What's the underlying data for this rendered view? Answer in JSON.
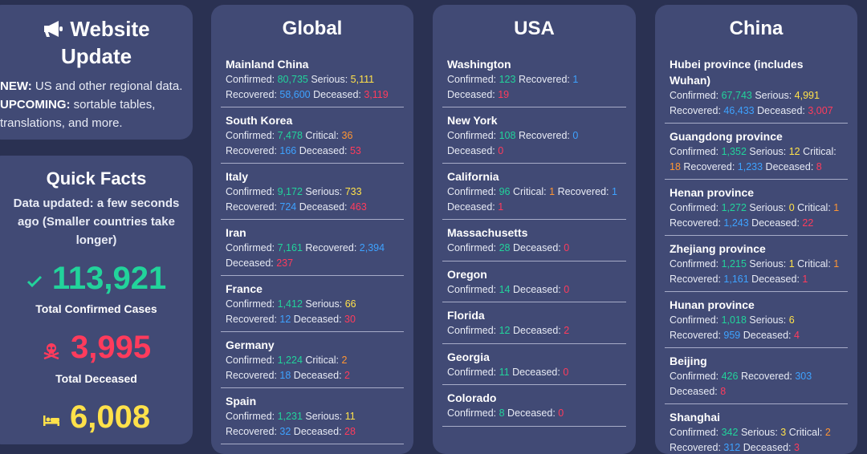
{
  "update": {
    "title_line1": "Website",
    "title_line2": "Update",
    "new_label": "NEW:",
    "new_text": " US and other regional data.",
    "upcoming_label": "UPCOMING:",
    "upcoming_text": " sortable tables, translations, and more."
  },
  "facts": {
    "title": "Quick Facts",
    "updated": "Data updated: a few seconds ago (Smaller countries take longer)",
    "confirmed": "113,921",
    "confirmed_label": "Total Confirmed Cases",
    "deceased": "3,995",
    "deceased_label": "Total Deceased",
    "recovered": "6,008"
  },
  "labels": {
    "confirmed": "Confirmed: ",
    "serious": " Serious: ",
    "critical": " Critical: ",
    "recovered": " Recovered: ",
    "deceased": " Deceased: "
  },
  "global": {
    "title": "Global",
    "items": [
      {
        "name": "Mainland China",
        "stats": [
          [
            "confirmed",
            "80,735"
          ],
          [
            "serious",
            "5,111"
          ],
          [
            "recovered",
            "58,600"
          ],
          [
            "deceased",
            "3,119"
          ]
        ]
      },
      {
        "name": "South Korea",
        "stats": [
          [
            "confirmed",
            "7,478"
          ],
          [
            "critical",
            "36"
          ],
          [
            "recovered",
            "166"
          ],
          [
            "deceased",
            "53"
          ]
        ]
      },
      {
        "name": "Italy",
        "stats": [
          [
            "confirmed",
            "9,172"
          ],
          [
            "serious",
            "733"
          ],
          [
            "recovered",
            "724"
          ],
          [
            "deceased",
            "463"
          ]
        ]
      },
      {
        "name": "Iran",
        "stats": [
          [
            "confirmed",
            "7,161"
          ],
          [
            "recovered",
            "2,394"
          ],
          [
            "deceased",
            "237"
          ]
        ]
      },
      {
        "name": "France",
        "stats": [
          [
            "confirmed",
            "1,412"
          ],
          [
            "serious",
            "66"
          ],
          [
            "recovered",
            "12"
          ],
          [
            "deceased",
            "30"
          ]
        ]
      },
      {
        "name": "Germany",
        "stats": [
          [
            "confirmed",
            "1,224"
          ],
          [
            "critical",
            "2"
          ],
          [
            "recovered",
            "18"
          ],
          [
            "deceased",
            "2"
          ]
        ]
      },
      {
        "name": "Spain",
        "stats": [
          [
            "confirmed",
            "1,231"
          ],
          [
            "serious",
            "11"
          ],
          [
            "recovered",
            "32"
          ],
          [
            "deceased",
            "28"
          ]
        ]
      }
    ]
  },
  "usa": {
    "title": "USA",
    "items": [
      {
        "name": "Washington",
        "stats": [
          [
            "confirmed",
            "123"
          ],
          [
            "recovered",
            "1"
          ],
          [
            "deceased",
            "19"
          ]
        ]
      },
      {
        "name": "New York",
        "stats": [
          [
            "confirmed",
            "108"
          ],
          [
            "recovered",
            "0"
          ],
          [
            "deceased",
            "0"
          ]
        ]
      },
      {
        "name": "California",
        "stats": [
          [
            "confirmed",
            "96"
          ],
          [
            "critical",
            "1"
          ],
          [
            "recovered",
            "1"
          ],
          [
            "deceased",
            "1"
          ]
        ]
      },
      {
        "name": "Massachusetts",
        "stats": [
          [
            "confirmed",
            "28"
          ],
          [
            "deceased",
            "0"
          ]
        ]
      },
      {
        "name": "Oregon",
        "stats": [
          [
            "confirmed",
            "14"
          ],
          [
            "deceased",
            "0"
          ]
        ]
      },
      {
        "name": "Florida",
        "stats": [
          [
            "confirmed",
            "12"
          ],
          [
            "deceased",
            "2"
          ]
        ]
      },
      {
        "name": "Georgia",
        "stats": [
          [
            "confirmed",
            "11"
          ],
          [
            "deceased",
            "0"
          ]
        ]
      },
      {
        "name": "Colorado",
        "stats": [
          [
            "confirmed",
            "8"
          ],
          [
            "deceased",
            "0"
          ]
        ]
      }
    ]
  },
  "china": {
    "title": "China",
    "items": [
      {
        "name": "Hubei province (includes Wuhan)",
        "stats": [
          [
            "confirmed",
            "67,743"
          ],
          [
            "serious",
            "4,991"
          ],
          [
            "recovered",
            "46,433"
          ],
          [
            "deceased",
            "3,007"
          ]
        ]
      },
      {
        "name": "Guangdong province",
        "stats": [
          [
            "confirmed",
            "1,352"
          ],
          [
            "serious",
            "12"
          ],
          [
            "critical",
            "18"
          ],
          [
            "recovered",
            "1,233"
          ],
          [
            "deceased",
            "8"
          ]
        ]
      },
      {
        "name": "Henan province",
        "stats": [
          [
            "confirmed",
            "1,272"
          ],
          [
            "serious",
            "0"
          ],
          [
            "critical",
            "1"
          ],
          [
            "recovered",
            "1,243"
          ],
          [
            "deceased",
            "22"
          ]
        ]
      },
      {
        "name": "Zhejiang province",
        "stats": [
          [
            "confirmed",
            "1,215"
          ],
          [
            "serious",
            "1"
          ],
          [
            "critical",
            "1"
          ],
          [
            "recovered",
            "1,161"
          ],
          [
            "deceased",
            "1"
          ]
        ]
      },
      {
        "name": "Hunan province",
        "stats": [
          [
            "confirmed",
            "1,018"
          ],
          [
            "serious",
            "6"
          ],
          [
            "recovered",
            "959"
          ],
          [
            "deceased",
            "4"
          ]
        ]
      },
      {
        "name": "Beijing",
        "stats": [
          [
            "confirmed",
            "426"
          ],
          [
            "recovered",
            "303"
          ],
          [
            "deceased",
            "8"
          ]
        ]
      },
      {
        "name": "Shanghai",
        "stats": [
          [
            "confirmed",
            "342"
          ],
          [
            "serious",
            "3"
          ],
          [
            "critical",
            "2"
          ],
          [
            "recovered",
            "312"
          ],
          [
            "deceased",
            "3"
          ]
        ]
      }
    ]
  },
  "colors": {
    "background": "#2a3152",
    "card": "#414a75",
    "confirmed": "#22d39b",
    "serious": "#ffe14a",
    "critical": "#ff9533",
    "recovered": "#3ea2ff",
    "deceased": "#ff3b5c"
  }
}
